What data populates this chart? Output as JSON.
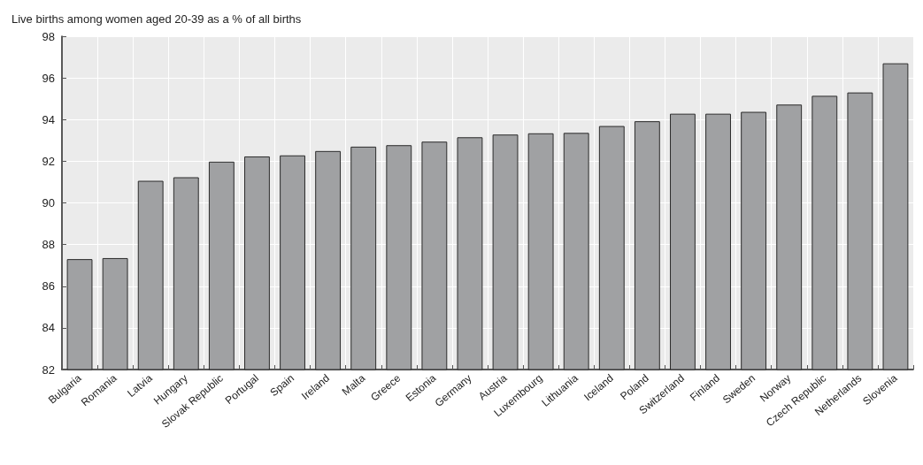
{
  "chart_data": {
    "type": "bar",
    "title": "Live births among women aged 20-39 as a % of all births",
    "categories": [
      "Bulgaria",
      "Romania",
      "Latvia",
      "Hungary",
      "Slovak Republic",
      "Portugal",
      "Spain",
      "Ireland",
      "Malta",
      "Greece",
      "Estonia",
      "Germany",
      "Austria",
      "Luxembourg",
      "Lithuania",
      "Iceland",
      "Poland",
      "Switzerland",
      "Finland",
      "Sweden",
      "Norway",
      "Czech Republic",
      "Netherlands",
      "Slovenia"
    ],
    "values": [
      87.3,
      87.35,
      91.06,
      91.23,
      91.98,
      92.23,
      92.28,
      92.49,
      92.7,
      92.77,
      92.94,
      93.15,
      93.28,
      93.34,
      93.36,
      93.69,
      93.92,
      94.28,
      94.28,
      94.37,
      94.72,
      95.14,
      95.3,
      96.7
    ],
    "color": "#a0a1a3",
    "ylim": [
      82,
      98
    ],
    "yticks": [
      82,
      84,
      86,
      88,
      90,
      92,
      94,
      96,
      98
    ],
    "grid": true
  }
}
